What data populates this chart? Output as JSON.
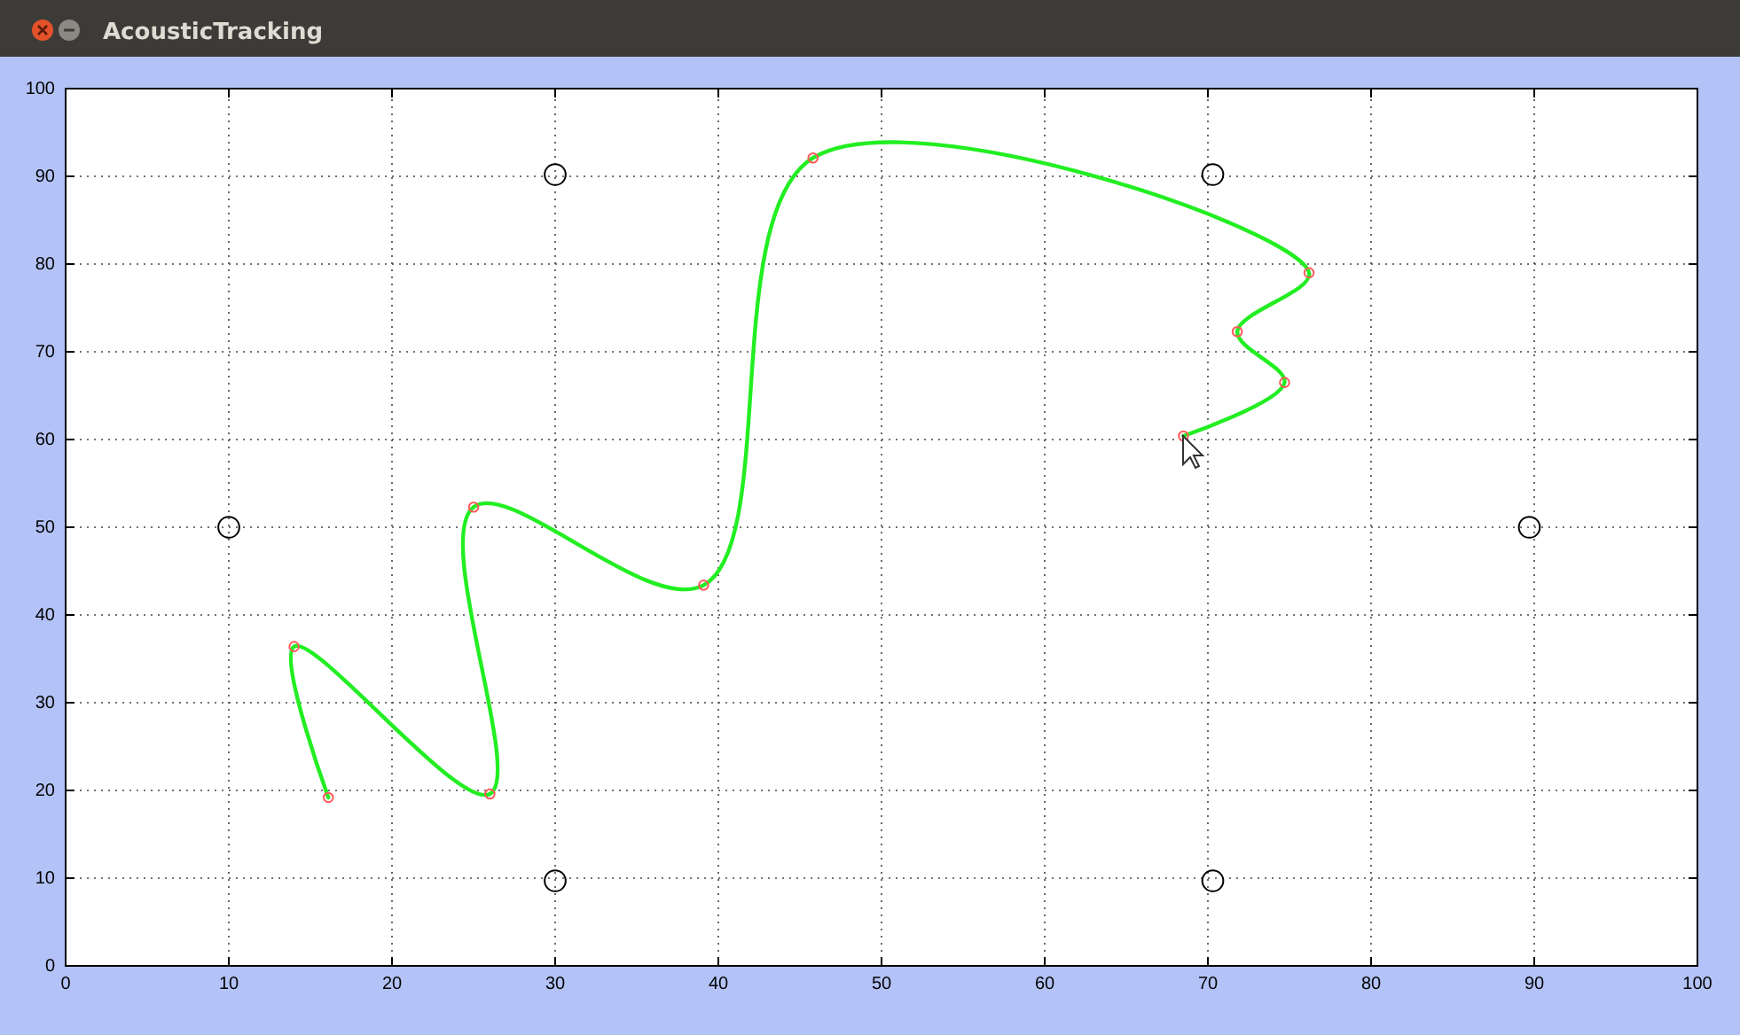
{
  "chart_data": {
    "type": "scatter",
    "title": "AcousticTracking",
    "xlim": [
      0,
      100
    ],
    "ylim": [
      0,
      100
    ],
    "xticks": [
      0,
      10,
      20,
      30,
      40,
      50,
      60,
      70,
      80,
      90,
      100
    ],
    "yticks": [
      0,
      10,
      20,
      30,
      40,
      50,
      60,
      70,
      80,
      90,
      100
    ],
    "grid": true,
    "series": [
      {
        "type": "line",
        "color": "#22ee22",
        "marker": "none",
        "line_style": "solid",
        "x": [
          16.1,
          14.0,
          26.0,
          25.0,
          39.1,
          45.8,
          76.2,
          71.8,
          74.7,
          68.5
        ],
        "values": [
          19.2,
          36.4,
          19.6,
          52.3,
          43.4,
          92.1,
          79.0,
          72.3,
          66.5,
          60.4
        ]
      },
      {
        "color": "#ff5a5a",
        "marker": "circle",
        "x": [
          16.1,
          14.0,
          26.0,
          25.0,
          39.1,
          45.8,
          76.2,
          71.8,
          74.7,
          68.5
        ],
        "values": [
          19.2,
          36.4,
          19.6,
          52.3,
          43.4,
          92.1,
          79.0,
          72.3,
          66.5,
          60.4
        ]
      },
      {
        "color": "#000000",
        "marker": "circle",
        "x": [
          10,
          30,
          70.3,
          89.7,
          70.3,
          30
        ],
        "values": [
          50,
          90.2,
          90.2,
          50,
          9.7,
          9.7
        ]
      }
    ]
  }
}
